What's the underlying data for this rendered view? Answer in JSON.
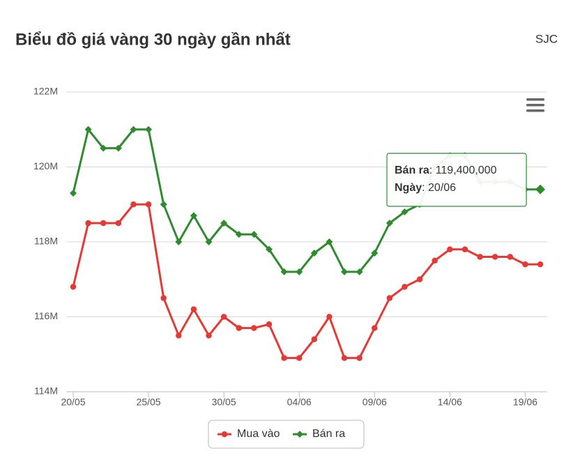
{
  "chart_data": {
    "type": "line",
    "title": "Biểu đồ giá vàng 30 ngày gần nhất",
    "subtitle": "SJC",
    "categories": [
      "20/05",
      null,
      null,
      null,
      null,
      "25/05",
      null,
      null,
      null,
      null,
      "30/05",
      null,
      null,
      null,
      null,
      "04/06",
      null,
      null,
      null,
      null,
      "09/06",
      null,
      null,
      null,
      null,
      "14/06",
      null,
      null,
      null,
      null,
      "19/06",
      null
    ],
    "series": [
      {
        "name": "Mua vào",
        "color": "#e53935",
        "marker": "circle",
        "values": [
          116.8,
          118.5,
          118.5,
          118.5,
          119.0,
          119.0,
          116.5,
          115.5,
          116.2,
          115.5,
          116.0,
          115.7,
          115.7,
          115.8,
          114.9,
          114.9,
          115.4,
          116.0,
          114.9,
          114.9,
          115.7,
          116.5,
          116.8,
          117.0,
          117.5,
          117.8,
          117.8,
          117.6,
          117.6,
          117.6,
          117.4,
          117.4
        ]
      },
      {
        "name": "Bán ra",
        "color": "#2e8b2e",
        "marker": "diamond",
        "values": [
          119.3,
          121.0,
          120.5,
          120.5,
          121.0,
          121.0,
          119.0,
          118.0,
          118.7,
          118.0,
          118.5,
          118.2,
          118.2,
          117.8,
          117.2,
          117.2,
          117.7,
          118.0,
          117.2,
          117.2,
          117.7,
          118.5,
          118.8,
          119.0,
          120.0,
          120.3,
          120.3,
          119.6,
          119.6,
          119.6,
          119.4,
          119.4
        ]
      }
    ],
    "ylim": [
      114,
      122
    ],
    "yticks": [
      {
        "value": 114,
        "label": "114M"
      },
      {
        "value": 116,
        "label": "116M"
      },
      {
        "value": 118,
        "label": "118M"
      },
      {
        "value": 120,
        "label": "120M"
      },
      {
        "value": 122,
        "label": "122M"
      }
    ],
    "grid": true,
    "legend": "bottom",
    "tooltip": {
      "lines": [
        {
          "label": "Bán ra",
          "value": ": 119,400,000"
        },
        {
          "label": "Ngày",
          "value": ": 20/06"
        }
      ]
    }
  }
}
